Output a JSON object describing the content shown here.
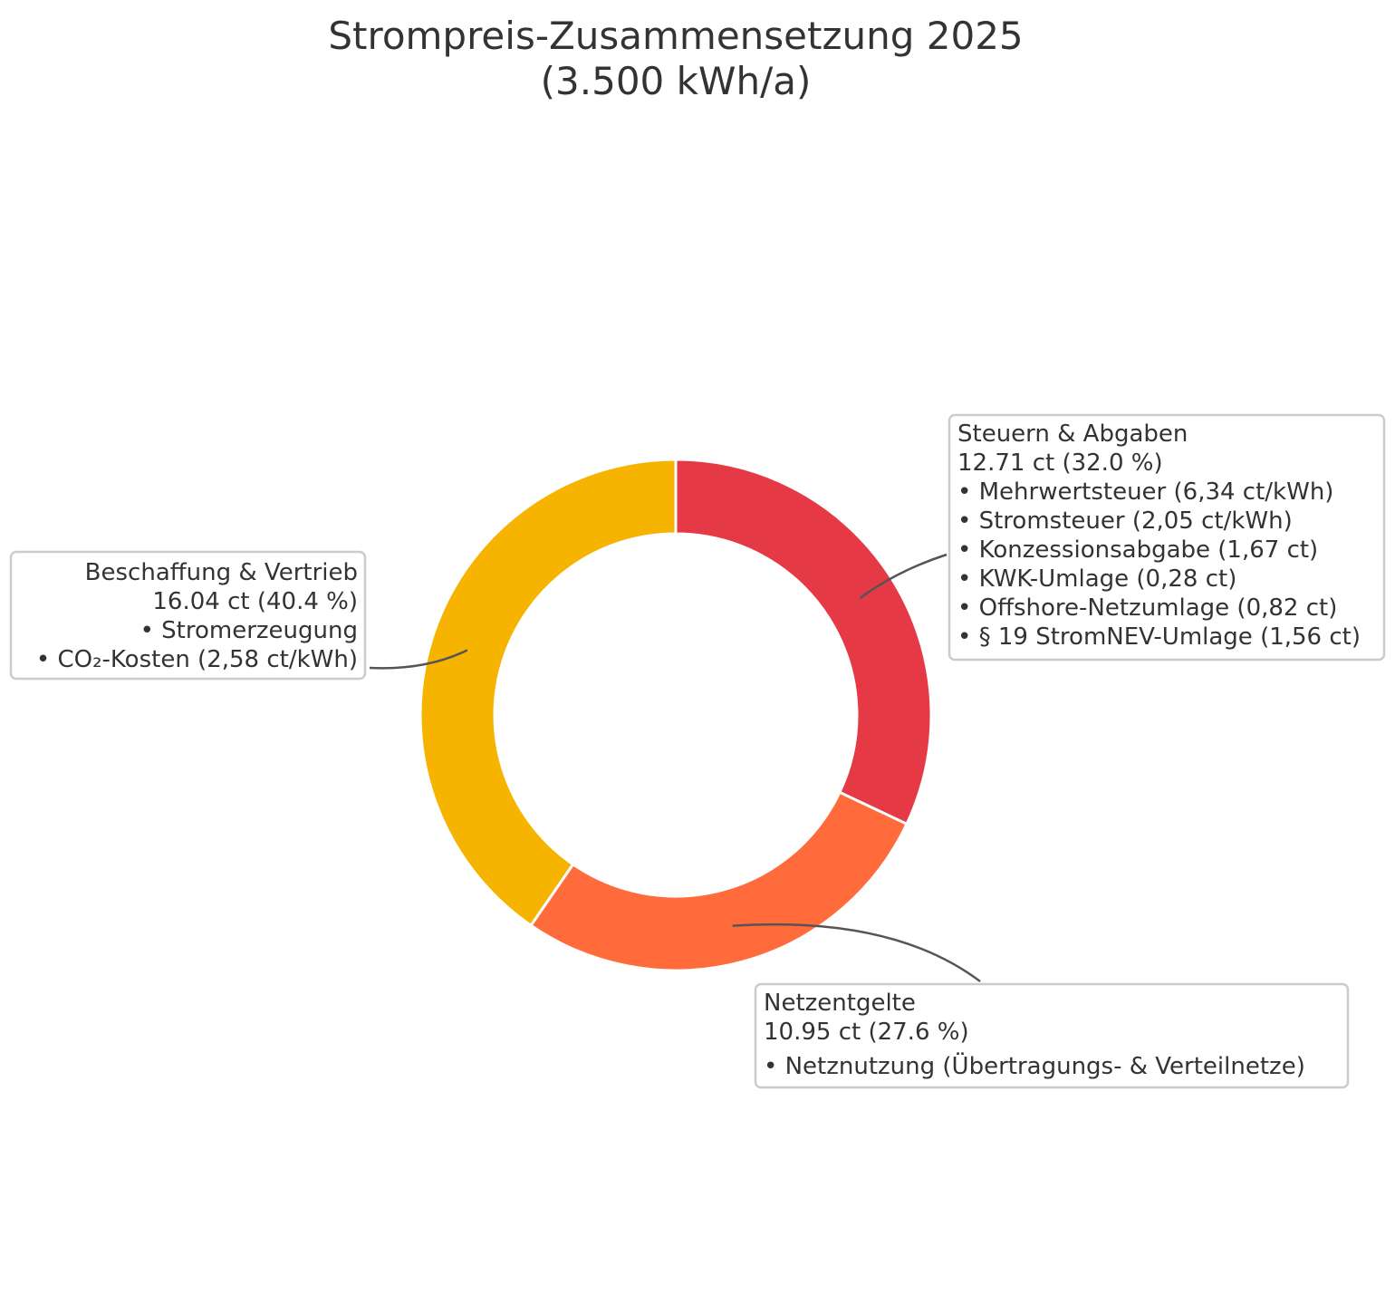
{
  "chart_data": {
    "type": "pie",
    "variant": "donut",
    "title": "Strompreis-Zusammensetzung 2025",
    "subtitle": "(3.500 kWh/a)",
    "slices": [
      {
        "label": "Steuern & Abgaben",
        "value": 12.71,
        "percent": 32.0,
        "color": "#E63946",
        "value_line": "12.71 ct (32.0 %)",
        "details": [
          "• Mehrwertsteuer (6,34 ct/kWh)",
          "• Stromsteuer (2,05 ct/kWh)",
          "• Konzessionsabgabe (1,67 ct)",
          "• KWK-Umlage (0,28 ct)",
          "• Offshore-Netzumlage (0,82 ct)",
          "• § 19 StromNEV-Umlage (1,56 ct)"
        ]
      },
      {
        "label": "Netzentgelte",
        "value": 10.95,
        "percent": 27.6,
        "color": "#FF6B3B",
        "value_line": "10.95 ct (27.6 %)",
        "details": [
          "• Netznutzung (Übertragungs- & Verteilnetze)"
        ]
      },
      {
        "label": "Beschaffung & Vertrieb",
        "value": 16.04,
        "percent": 40.4,
        "color": "#F6B400",
        "value_line": "16.04 ct (40.4 %)",
        "details": [
          "• Stromerzeugung",
          "• CO₂-Kosten (2,58 ct/kWh)"
        ]
      }
    ],
    "start_angle": "top",
    "direction": "clockwise",
    "legend": "none"
  }
}
